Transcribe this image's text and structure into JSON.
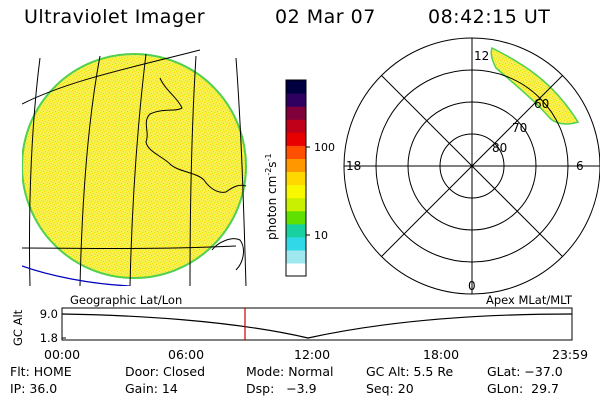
{
  "header": {
    "title": "Ultraviolet Imager",
    "date": "02 Mar 07",
    "time": "08:42:15 UT"
  },
  "colorbar": {
    "label": "photon cm",
    "label_sup1": "-2",
    "label_mid": "s",
    "label_sup2": "-1",
    "ticks": [
      "100",
      "10"
    ],
    "colors": [
      "#000040",
      "#300060",
      "#80003c",
      "#c00018",
      "#e80000",
      "#ff5000",
      "#ff9800",
      "#ffd800",
      "#f8f800",
      "#c8f000",
      "#60e000",
      "#18d0a0",
      "#30d8e8",
      "#a0e8f0",
      "#ffffff"
    ]
  },
  "polar_plot": {
    "mlt_labels": [
      "12",
      "18",
      "6",
      "0"
    ],
    "mlat_labels": [
      "80",
      "70",
      "60"
    ]
  },
  "alt_plot": {
    "ylabel": "GC Alt",
    "yticks": [
      "9.0",
      "1.8"
    ],
    "left_caption": "Geographic Lat/Lon",
    "right_caption": "Apex MLat/MLT",
    "xticks": [
      "00:00",
      "06:00",
      "12:00",
      "18:00",
      "23:59"
    ]
  },
  "info": {
    "row1": {
      "flt": "Flt: HOME",
      "door": "Door: Closed",
      "mode": "Mode: Normal",
      "gcalt": "GC Alt: 5.5 Re",
      "glat": "GLat: −37.0"
    },
    "row2": {
      "ip": "IP: 36.0",
      "gain": "Gain: 14",
      "dsp": "Dsp:   −3.9",
      "seq": "Seq: 20",
      "glon": "GLon:  29.7"
    }
  },
  "colors": {
    "earth_fill": "#f8f050",
    "earth_edge": "#50d050",
    "speckle_a": "#ffd700",
    "speckle_b": "#c8f000",
    "coast_blue": "#0000c0",
    "marker_red": "#cc0000"
  }
}
